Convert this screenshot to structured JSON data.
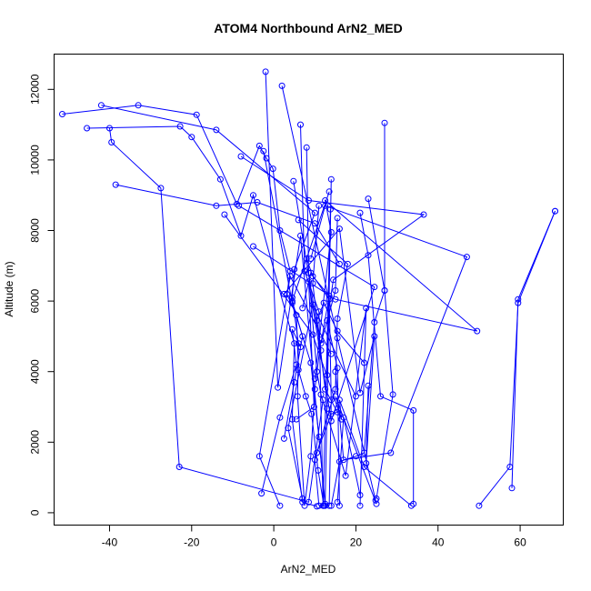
{
  "chart_data": {
    "type": "line",
    "title": "ATOM4 Northbound ArN2_MED",
    "xlabel": "ArN2_MED",
    "ylabel": "Altitude (m)",
    "xlim": [
      -53.5,
      70.5
    ],
    "ylim": [
      -350,
      13000
    ],
    "x_ticks": [
      -40,
      -20,
      0,
      20,
      40,
      60
    ],
    "y_ticks": [
      0,
      2000,
      4000,
      6000,
      8000,
      10000,
      12000
    ],
    "series_color": "#0000ff",
    "marker": "open-circle",
    "grid": false,
    "series": [
      {
        "points": [
          [
            -51.5,
            11300
          ],
          [
            -33.0,
            11550
          ],
          [
            -18.8,
            11280
          ],
          [
            -9.0,
            8750
          ],
          [
            -3.5,
            10400
          ],
          [
            -1.8,
            10050
          ],
          [
            -0.2,
            9750
          ],
          [
            1.5,
            8000
          ],
          [
            4.0,
            6850
          ],
          [
            3.2,
            6200
          ],
          [
            5.5,
            5600
          ],
          [
            6.0,
            4050
          ],
          [
            7.8,
            3300
          ],
          [
            9.2,
            2800
          ],
          [
            10.8,
            1200
          ],
          [
            12.2,
            200
          ]
        ]
      },
      {
        "points": [
          [
            -42.0,
            11550
          ],
          [
            -14.0,
            10850
          ],
          [
            10.0,
            8500
          ],
          [
            5.0,
            6900
          ],
          [
            4.5,
            6100
          ],
          [
            6.0,
            4800
          ],
          [
            5.8,
            3300
          ],
          [
            7.5,
            200
          ],
          [
            9.0,
            1600
          ],
          [
            10.0,
            3500
          ],
          [
            11.5,
            4900
          ]
        ]
      },
      {
        "points": [
          [
            -45.5,
            10900
          ],
          [
            -22.8,
            10950
          ],
          [
            -20.0,
            10650
          ],
          [
            -13.0,
            9450
          ],
          [
            -8.0,
            7850
          ],
          [
            -5.0,
            9000
          ],
          [
            5.0,
            4800
          ],
          [
            4.5,
            2650
          ],
          [
            7.0,
            300
          ],
          [
            10.5,
            180
          ]
        ]
      },
      {
        "points": [
          [
            -40.0,
            10900
          ],
          [
            -39.5,
            10500
          ],
          [
            -27.5,
            9200
          ],
          [
            -23.0,
            1300
          ],
          [
            8.5,
            300
          ],
          [
            12.0,
            3200
          ]
        ]
      },
      {
        "points": [
          [
            -38.5,
            9300
          ],
          [
            -14.0,
            8700
          ],
          [
            -4.0,
            8800
          ],
          [
            10.0,
            8200
          ],
          [
            16.0,
            7050
          ]
        ]
      },
      {
        "points": [
          [
            -2.0,
            12500
          ],
          [
            1.0,
            3550
          ],
          [
            6.5,
            7850
          ],
          [
            12.5,
            200
          ],
          [
            14.0,
            9450
          ],
          [
            13.0,
            2950
          ]
        ]
      },
      {
        "points": [
          [
            2.0,
            12100
          ],
          [
            15.5,
            4950
          ],
          [
            24.8,
            350
          ],
          [
            25.0,
            250
          ],
          [
            15.0,
            3300
          ]
        ]
      },
      {
        "points": [
          [
            6.5,
            11000
          ],
          [
            7.5,
            6850
          ],
          [
            11.0,
            5700
          ],
          [
            12.0,
            200
          ],
          [
            13.8,
            8600
          ],
          [
            13.0,
            3900
          ]
        ]
      },
      {
        "points": [
          [
            8.0,
            10350
          ],
          [
            8.5,
            6800
          ],
          [
            10.5,
            4000
          ],
          [
            11.5,
            3350
          ],
          [
            17.5,
            1050
          ],
          [
            22.5,
            5800
          ],
          [
            21.0,
            200
          ]
        ]
      },
      {
        "points": [
          [
            27.0,
            11050
          ],
          [
            27.0,
            6300
          ],
          [
            24.5,
            5400
          ],
          [
            22.0,
            1700
          ],
          [
            20.0,
            1600
          ],
          [
            16.0,
            1450
          ],
          [
            14.0,
            200
          ]
        ]
      },
      {
        "points": [
          [
            -2.5,
            10250
          ],
          [
            4.5,
            5950
          ],
          [
            9.0,
            4250
          ],
          [
            11.0,
            2150
          ],
          [
            12.5,
            250
          ]
        ]
      },
      {
        "points": [
          [
            -8.0,
            10100
          ],
          [
            8.5,
            8850
          ],
          [
            36.5,
            8450
          ],
          [
            14.5,
            6600
          ],
          [
            13.0,
            5450
          ],
          [
            15.5,
            4100
          ],
          [
            16.0,
            200
          ]
        ]
      },
      {
        "points": [
          [
            -12.0,
            8450
          ],
          [
            9.5,
            5050
          ],
          [
            16.5,
            2650
          ],
          [
            16.0,
            3200
          ],
          [
            22.0,
            1300
          ],
          [
            33.5,
            200
          ]
        ]
      },
      {
        "points": [
          [
            -8.5,
            8700
          ],
          [
            24.5,
            6400
          ],
          [
            14.0,
            2600
          ],
          [
            8.5,
            6550
          ],
          [
            9.8,
            3000
          ],
          [
            5.5,
            2650
          ]
        ]
      },
      {
        "points": [
          [
            4.8,
            9400
          ],
          [
            11.5,
            4600
          ],
          [
            10.5,
            5450
          ],
          [
            12.2,
            5950
          ],
          [
            15.5,
            5150
          ],
          [
            22.0,
            4250
          ]
        ]
      },
      {
        "points": [
          [
            6.0,
            8300
          ],
          [
            18.0,
            7050
          ],
          [
            15.5,
            5500
          ],
          [
            15.0,
            3500
          ],
          [
            10.0,
            1500
          ],
          [
            11.0,
            200
          ]
        ]
      },
      {
        "points": [
          [
            8.0,
            7200
          ],
          [
            9.5,
            6700
          ],
          [
            13.5,
            6150
          ],
          [
            11.5,
            4800
          ],
          [
            15.0,
            6300
          ],
          [
            15.5,
            8350
          ]
        ]
      },
      {
        "points": [
          [
            11.0,
            8700
          ],
          [
            9.5,
            6500
          ],
          [
            12.5,
            3500
          ],
          [
            15.5,
            2850
          ],
          [
            14.0,
            2800
          ],
          [
            10.5,
            1700
          ]
        ]
      },
      {
        "points": [
          [
            9.0,
            7200
          ],
          [
            12.5,
            8700
          ],
          [
            47.0,
            7250
          ],
          [
            28.5,
            1700
          ],
          [
            17.0,
            1500
          ],
          [
            15.0,
            4000
          ]
        ]
      },
      {
        "points": [
          [
            -5.0,
            7550
          ],
          [
            15.0,
            6050
          ],
          [
            49.5,
            5150
          ],
          [
            12.5,
            8850
          ],
          [
            14.0,
            7950
          ],
          [
            10.0,
            3800
          ]
        ]
      },
      {
        "points": [
          [
            2.5,
            6200
          ],
          [
            16.0,
            8050
          ],
          [
            21.0,
            3400
          ],
          [
            24.5,
            5000
          ],
          [
            22.5,
            1400
          ],
          [
            23.0,
            3600
          ]
        ]
      },
      {
        "points": [
          [
            7.0,
            5800
          ],
          [
            9.0,
            6800
          ],
          [
            13.5,
            6050
          ],
          [
            14.0,
            3200
          ],
          [
            13.5,
            200
          ]
        ]
      },
      {
        "points": [
          [
            21.0,
            8500
          ],
          [
            23.0,
            7300
          ],
          [
            26.0,
            3300
          ],
          [
            34.0,
            2900
          ],
          [
            34.0,
            250
          ]
        ]
      },
      {
        "points": [
          [
            68.5,
            8550
          ],
          [
            59.5,
            5950
          ],
          [
            57.5,
            1300
          ],
          [
            50.0,
            200
          ]
        ]
      },
      {
        "points": [
          [
            68.5,
            8550
          ],
          [
            59.5,
            6050
          ],
          [
            58.0,
            700
          ]
        ]
      },
      {
        "points": [
          [
            13.5,
            9100
          ],
          [
            4.5,
            6000
          ],
          [
            7.0,
            5000
          ],
          [
            5.0,
            3700
          ],
          [
            2.5,
            2100
          ]
        ]
      },
      {
        "points": [
          [
            -3.0,
            550
          ],
          [
            1.5,
            2700
          ],
          [
            5.5,
            4200
          ],
          [
            4.5,
            5200
          ],
          [
            6.5,
            4700
          ]
        ]
      },
      {
        "points": [
          [
            1.5,
            200
          ],
          [
            -3.5,
            1600
          ],
          [
            4.0,
            6700
          ],
          [
            14.0,
            4500
          ]
        ]
      },
      {
        "points": [
          [
            7.0,
            400
          ],
          [
            3.5,
            2400
          ],
          [
            9.5,
            5900
          ],
          [
            20.0,
            3300
          ]
        ]
      },
      {
        "points": [
          [
            15.5,
            300
          ],
          [
            17.0,
            2700
          ],
          [
            21.0,
            500
          ]
        ]
      },
      {
        "points": [
          [
            25.0,
            400
          ],
          [
            29.0,
            3350
          ],
          [
            27.0,
            6300
          ],
          [
            23.0,
            8900
          ]
        ]
      }
    ]
  }
}
